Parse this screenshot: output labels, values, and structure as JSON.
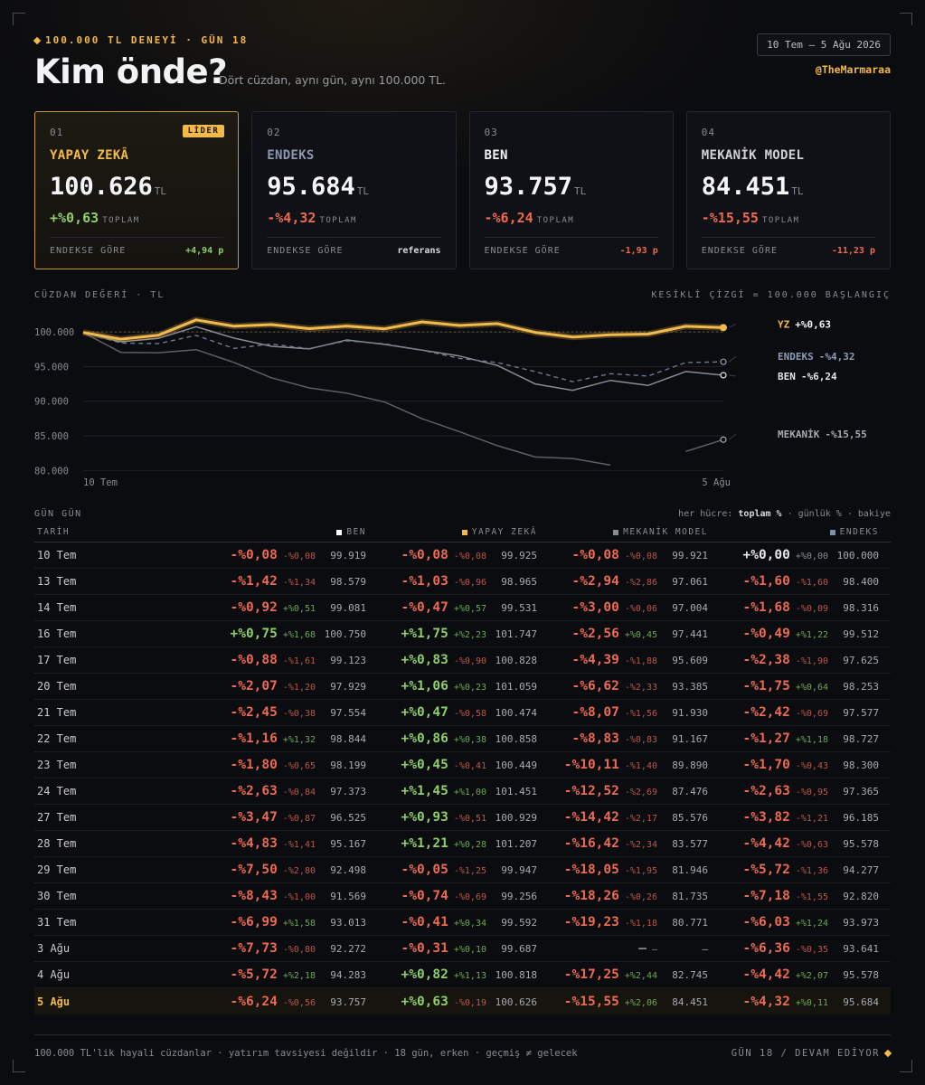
{
  "header": {
    "eyebrow": "100.000 TL DENEYİ · GÜN 18",
    "title": "Kim önde?",
    "subtitle": "Dört cüzdan, aynı gün, aynı 100.000 TL.",
    "date_range": "10 Tem – 5 Ağu 2026",
    "handle": "@TheMarmaraa"
  },
  "colors": {
    "accent": "#f2b94b",
    "positive": "#8fce6a",
    "negative": "#ec6a52",
    "ben": "#ffffff",
    "yz": "#f2b94b",
    "mekanik": "#8a8a92",
    "endeks": "#7d8fab"
  },
  "cards": [
    {
      "num": "01",
      "badge": "LİDER",
      "name": "YAPAY ZEKÂ",
      "value": "100.626",
      "unit": "TL",
      "change": "+%0,63",
      "change_label": "TOPLAM",
      "foot_label": "ENDEKSE GÖRE",
      "foot_value": "+4,94 p",
      "tone": "pos",
      "foot_tone": "pos"
    },
    {
      "num": "02",
      "badge": "",
      "name": "ENDEKS",
      "value": "95.684",
      "unit": "TL",
      "change": "-%4,32",
      "change_label": "TOPLAM",
      "foot_label": "ENDEKSE GÖRE",
      "foot_value": "referans",
      "tone": "neg",
      "foot_tone": "zero"
    },
    {
      "num": "03",
      "badge": "",
      "name": "BEN",
      "value": "93.757",
      "unit": "TL",
      "change": "-%6,24",
      "change_label": "TOPLAM",
      "foot_label": "ENDEKSE GÖRE",
      "foot_value": "-1,93 p",
      "tone": "neg",
      "foot_tone": "neg"
    },
    {
      "num": "04",
      "badge": "",
      "name": "MEKANİK MODEL",
      "value": "84.451",
      "unit": "TL",
      "change": "-%15,55",
      "change_label": "TOPLAM",
      "foot_label": "ENDEKSE GÖRE",
      "foot_value": "-11,23 p",
      "tone": "neg",
      "foot_tone": "neg"
    }
  ],
  "chart_section": {
    "label": "CÜZDAN DEĞERİ · TL",
    "note": "KESİKLİ ÇİZGİ = 100.000 BAŞLANGIÇ"
  },
  "chart_data": {
    "type": "line",
    "title": "",
    "ylabel": "",
    "ylim": [
      79000,
      102500
    ],
    "yticks": [
      "100.000",
      "95.000",
      "90.000",
      "85.000",
      "80.000"
    ],
    "ytick_values": [
      100000,
      95000,
      90000,
      85000,
      80000
    ],
    "x_first_label": "10 Tem",
    "x_last_label": "5 Ağu",
    "x": [
      "10 Tem",
      "13 Tem",
      "14 Tem",
      "16 Tem",
      "17 Tem",
      "20 Tem",
      "21 Tem",
      "22 Tem",
      "23 Tem",
      "24 Tem",
      "27 Tem",
      "28 Tem",
      "29 Tem",
      "30 Tem",
      "31 Tem",
      "3 Ağu",
      "4 Ağu",
      "5 Ağu"
    ],
    "baseline": 100000,
    "series": [
      {
        "key": "yz",
        "end_label": "YZ",
        "end_change": "+%0,63",
        "values": [
          99925,
          98965,
          99531,
          101747,
          100828,
          101059,
          100474,
          100858,
          100449,
          101451,
          100929,
          101207,
          99947,
          99256,
          99592,
          99687,
          100818,
          100626
        ]
      },
      {
        "key": "endeks",
        "end_label": "ENDEKS",
        "end_change": "-%4,32",
        "values": [
          100000,
          98400,
          98316,
          99512,
          97625,
          98253,
          97577,
          98727,
          98300,
          97365,
          96185,
          95578,
          94277,
          92820,
          93973,
          93641,
          95578,
          95684
        ]
      },
      {
        "key": "ben",
        "end_label": "BEN",
        "end_change": "-%6,24",
        "values": [
          99919,
          98579,
          99081,
          100750,
          99123,
          97929,
          97554,
          98844,
          98199,
          97373,
          96525,
          95167,
          92498,
          91569,
          93013,
          92272,
          94283,
          93757
        ]
      },
      {
        "key": "mekanik",
        "end_label": "MEKANİK",
        "end_change": "-%15,55",
        "values": [
          99921,
          97061,
          97004,
          97441,
          95609,
          93385,
          91930,
          91167,
          89890,
          87476,
          85576,
          83577,
          81946,
          81735,
          80771,
          null,
          82745,
          84451
        ]
      }
    ]
  },
  "table": {
    "label": "GÜN GÜN",
    "note_prefix": "her hücre: ",
    "note_bold": "toplam %",
    "note_suffix": " · günlük % · bakiye",
    "col_date": "TARİH",
    "columns": [
      {
        "key": "ben",
        "label": "BEN"
      },
      {
        "key": "yz",
        "label": "YAPAY ZEKÂ"
      },
      {
        "key": "mekanik",
        "label": "MEKANİK MODEL"
      },
      {
        "key": "endeks",
        "label": "ENDEKS"
      }
    ],
    "rows": [
      {
        "date": "10 Tem",
        "cells": [
          [
            "-%0,08",
            "-%0,08",
            "99.919"
          ],
          [
            "-%0,08",
            "-%0,08",
            "99.925"
          ],
          [
            "-%0,08",
            "-%0,08",
            "99.921"
          ],
          [
            "+%0,00",
            "+%0,00",
            "100.000"
          ]
        ]
      },
      {
        "date": "13 Tem",
        "cells": [
          [
            "-%1,42",
            "-%1,34",
            "98.579"
          ],
          [
            "-%1,03",
            "-%0,96",
            "98.965"
          ],
          [
            "-%2,94",
            "-%2,86",
            "97.061"
          ],
          [
            "-%1,60",
            "-%1,60",
            "98.400"
          ]
        ]
      },
      {
        "date": "14 Tem",
        "cells": [
          [
            "-%0,92",
            "+%0,51",
            "99.081"
          ],
          [
            "-%0,47",
            "+%0,57",
            "99.531"
          ],
          [
            "-%3,00",
            "-%0,06",
            "97.004"
          ],
          [
            "-%1,68",
            "-%0,09",
            "98.316"
          ]
        ]
      },
      {
        "date": "16 Tem",
        "cells": [
          [
            "+%0,75",
            "+%1,68",
            "100.750"
          ],
          [
            "+%1,75",
            "+%2,23",
            "101.747"
          ],
          [
            "-%2,56",
            "+%0,45",
            "97.441"
          ],
          [
            "-%0,49",
            "+%1,22",
            "99.512"
          ]
        ]
      },
      {
        "date": "17 Tem",
        "cells": [
          [
            "-%0,88",
            "-%1,61",
            "99.123"
          ],
          [
            "+%0,83",
            "-%0,90",
            "100.828"
          ],
          [
            "-%4,39",
            "-%1,88",
            "95.609"
          ],
          [
            "-%2,38",
            "-%1,90",
            "97.625"
          ]
        ]
      },
      {
        "date": "20 Tem",
        "cells": [
          [
            "-%2,07",
            "-%1,20",
            "97.929"
          ],
          [
            "+%1,06",
            "+%0,23",
            "101.059"
          ],
          [
            "-%6,62",
            "-%2,33",
            "93.385"
          ],
          [
            "-%1,75",
            "+%0,64",
            "98.253"
          ]
        ]
      },
      {
        "date": "21 Tem",
        "cells": [
          [
            "-%2,45",
            "-%0,38",
            "97.554"
          ],
          [
            "+%0,47",
            "-%0,58",
            "100.474"
          ],
          [
            "-%8,07",
            "-%1,56",
            "91.930"
          ],
          [
            "-%2,42",
            "-%0,69",
            "97.577"
          ]
        ]
      },
      {
        "date": "22 Tem",
        "cells": [
          [
            "-%1,16",
            "+%1,32",
            "98.844"
          ],
          [
            "+%0,86",
            "+%0,38",
            "100.858"
          ],
          [
            "-%8,83",
            "-%0,83",
            "91.167"
          ],
          [
            "-%1,27",
            "+%1,18",
            "98.727"
          ]
        ]
      },
      {
        "date": "23 Tem",
        "cells": [
          [
            "-%1,80",
            "-%0,65",
            "98.199"
          ],
          [
            "+%0,45",
            "-%0,41",
            "100.449"
          ],
          [
            "-%10,11",
            "-%1,40",
            "89.890"
          ],
          [
            "-%1,70",
            "-%0,43",
            "98.300"
          ]
        ]
      },
      {
        "date": "24 Tem",
        "cells": [
          [
            "-%2,63",
            "-%0,84",
            "97.373"
          ],
          [
            "+%1,45",
            "+%1,00",
            "101.451"
          ],
          [
            "-%12,52",
            "-%2,69",
            "87.476"
          ],
          [
            "-%2,63",
            "-%0,95",
            "97.365"
          ]
        ]
      },
      {
        "date": "27 Tem",
        "cells": [
          [
            "-%3,47",
            "-%0,87",
            "96.525"
          ],
          [
            "+%0,93",
            "-%0,51",
            "100.929"
          ],
          [
            "-%14,42",
            "-%2,17",
            "85.576"
          ],
          [
            "-%3,82",
            "-%1,21",
            "96.185"
          ]
        ]
      },
      {
        "date": "28 Tem",
        "cells": [
          [
            "-%4,83",
            "-%1,41",
            "95.167"
          ],
          [
            "+%1,21",
            "+%0,28",
            "101.207"
          ],
          [
            "-%16,42",
            "-%2,34",
            "83.577"
          ],
          [
            "-%4,42",
            "-%0,63",
            "95.578"
          ]
        ]
      },
      {
        "date": "29 Tem",
        "cells": [
          [
            "-%7,50",
            "-%2,80",
            "92.498"
          ],
          [
            "-%0,05",
            "-%1,25",
            "99.947"
          ],
          [
            "-%18,05",
            "-%1,95",
            "81.946"
          ],
          [
            "-%5,72",
            "-%1,36",
            "94.277"
          ]
        ]
      },
      {
        "date": "30 Tem",
        "cells": [
          [
            "-%8,43",
            "-%1,00",
            "91.569"
          ],
          [
            "-%0,74",
            "-%0,69",
            "99.256"
          ],
          [
            "-%18,26",
            "-%0,26",
            "81.735"
          ],
          [
            "-%7,18",
            "-%1,55",
            "92.820"
          ]
        ]
      },
      {
        "date": "31 Tem",
        "cells": [
          [
            "-%6,99",
            "+%1,58",
            "93.013"
          ],
          [
            "-%0,41",
            "+%0,34",
            "99.592"
          ],
          [
            "-%19,23",
            "-%1,18",
            "80.771"
          ],
          [
            "-%6,03",
            "+%1,24",
            "93.973"
          ]
        ]
      },
      {
        "date": "3 Ağu",
        "cells": [
          [
            "-%7,73",
            "-%0,80",
            "92.272"
          ],
          [
            "-%0,31",
            "+%0,10",
            "99.687"
          ],
          [
            "—",
            "—",
            "—"
          ],
          [
            "-%6,36",
            "-%0,35",
            "93.641"
          ]
        ]
      },
      {
        "date": "4 Ağu",
        "cells": [
          [
            "-%5,72",
            "+%2,18",
            "94.283"
          ],
          [
            "+%0,82",
            "+%1,13",
            "100.818"
          ],
          [
            "-%17,25",
            "+%2,44",
            "82.745"
          ],
          [
            "-%4,42",
            "+%2,07",
            "95.578"
          ]
        ]
      },
      {
        "date": "5 Ağu",
        "cells": [
          [
            "-%6,24",
            "-%0,56",
            "93.757"
          ],
          [
            "+%0,63",
            "-%0,19",
            "100.626"
          ],
          [
            "-%15,55",
            "+%2,06",
            "84.451"
          ],
          [
            "-%4,32",
            "+%0,11",
            "95.684"
          ]
        ]
      }
    ]
  },
  "footer": {
    "left": "100.000 TL'lik hayali cüzdanlar · yatırım tavsiyesi değildir · 18 gün, erken · geçmiş ≠ gelecek",
    "right": "GÜN 18 / DEVAM EDİYOR"
  }
}
